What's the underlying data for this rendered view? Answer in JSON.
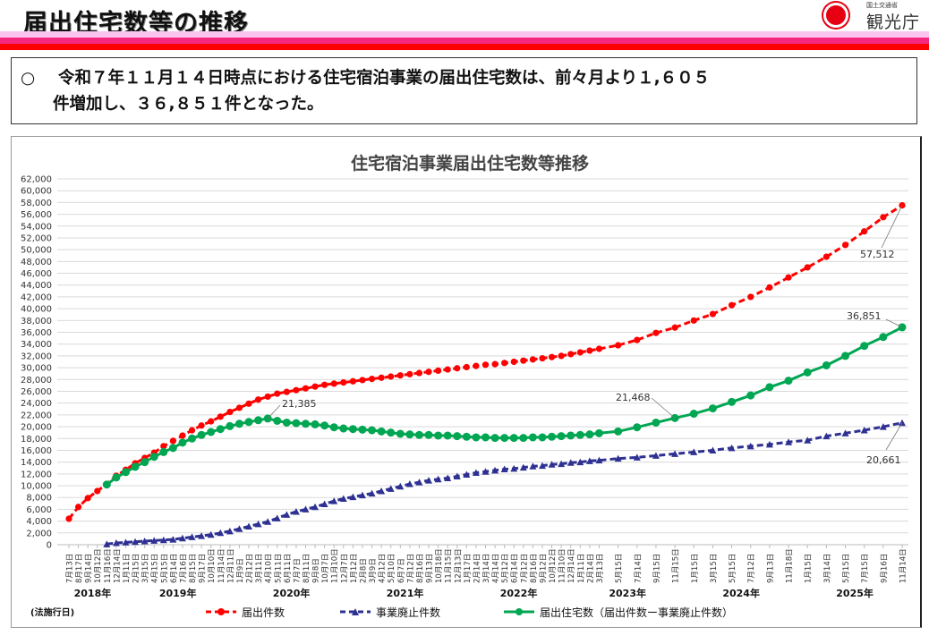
{
  "header": {
    "title": "届出住宅数等の推移",
    "logo_ministry": "国土交通省",
    "logo_agency": "観光庁"
  },
  "notice": {
    "bullet": "○",
    "line1": "令和７年１１月１４日時点における住宅宿泊事業の届出住宅数は、前々月より１,６０５",
    "line2": "件増加し、３６,８５１件となった。"
  },
  "colors": {
    "band_light": "#fbc3f0",
    "band_mid": "#f5287f",
    "band_red": "#ff0000",
    "red": "#ff0000",
    "navy": "#2e3192",
    "green": "#00a651"
  },
  "chart_data": {
    "type": "line",
    "title": "住宅宿泊事業届出住宅数等推移",
    "ylim": [
      0,
      62000
    ],
    "ystep": 2000,
    "grid": true,
    "legend_position": "bottom",
    "footnote": "(法施行日)",
    "x_labels": [
      "7月13日",
      "8月17日",
      "9月14日",
      "10月12日",
      "11月16日",
      "12月14日",
      "1月11日",
      "2月15日",
      "3月15日",
      "4月15日",
      "5月15日",
      "6月14日",
      "7月16日",
      "8月15日",
      "9月17日",
      "10月10日",
      "11月14日",
      "12月11日",
      "1月9日",
      "2月12日",
      "3月11日",
      "4月10日",
      "5月11日",
      "6月11日",
      "7月7日",
      "8月11日",
      "9月8日",
      "10月7日",
      "11月10日",
      "12月7日",
      "1月12日",
      "2月8日",
      "3月9日",
      "4月12日",
      "5月10日",
      "6月7日",
      "7月12日",
      "8月16日",
      "9月13日",
      "10月18日",
      "11月15日",
      "12月13日",
      "1月17日",
      "2月14日",
      "3月14日",
      "4月14日",
      "5月12日",
      "6月14日",
      "7月12日",
      "8月16日",
      "9月12日",
      "10月12日",
      "11月10日",
      "12月14日",
      "1月11日",
      "2月14日",
      "3月13日",
      "5月15日",
      "7月14日",
      "9月15日",
      "11月15日",
      "1月15日",
      "3月15日",
      "5月15日",
      "7月12日",
      "9月13日",
      "11月18日",
      "1月15日",
      "3月14日",
      "5月15日",
      "7月15日",
      "9月16日",
      "11月14日"
    ],
    "years": [
      {
        "label": "2018年",
        "year": 2018
      },
      {
        "label": "2019年",
        "year": 2019
      },
      {
        "label": "2020年",
        "year": 2020
      },
      {
        "label": "2021年",
        "year": 2021
      },
      {
        "label": "2022年",
        "year": 2022
      },
      {
        "label": "2023年",
        "year": 2023
      },
      {
        "label": "2024年",
        "year": 2024
      },
      {
        "label": "2025年",
        "year": 2025
      }
    ],
    "series": [
      {
        "name": "届出件数",
        "color": "#ff0000",
        "style": "dashed",
        "marker": "circle",
        "values": [
          4400,
          6400,
          7900,
          9100,
          10300,
          11700,
          12700,
          13800,
          14700,
          15600,
          16700,
          17600,
          18500,
          19400,
          20200,
          20900,
          21700,
          22500,
          23200,
          23900,
          24600,
          25100,
          25600,
          25900,
          26200,
          26500,
          26800,
          27100,
          27300,
          27500,
          27700,
          27900,
          28100,
          28300,
          28500,
          28700,
          28900,
          29100,
          29300,
          29500,
          29700,
          29900,
          30100,
          30300,
          30500,
          30600,
          30800,
          31000,
          31200,
          31400,
          31600,
          31800,
          32000,
          32300,
          32600,
          32900,
          33200,
          33800,
          34700,
          35900,
          36800,
          38000,
          39100,
          40600,
          42000,
          43600,
          45300,
          47000,
          48800,
          50800,
          53100,
          55500,
          57512
        ]
      },
      {
        "name": "事業廃止件数",
        "color": "#2e3192",
        "style": "dashed",
        "marker": "triangle",
        "values": [
          null,
          null,
          null,
          null,
          100,
          300,
          400,
          500,
          600,
          700,
          800,
          900,
          1100,
          1300,
          1500,
          1700,
          2000,
          2300,
          2700,
          3100,
          3500,
          3900,
          4500,
          5100,
          5600,
          6000,
          6400,
          6900,
          7400,
          7800,
          8100,
          8400,
          8700,
          9100,
          9500,
          9900,
          10300,
          10600,
          10900,
          11100,
          11300,
          11600,
          11900,
          12200,
          12400,
          12600,
          12800,
          12900,
          13100,
          13300,
          13400,
          13600,
          13700,
          13900,
          14000,
          14200,
          14300,
          14600,
          14800,
          15100,
          15400,
          15700,
          16000,
          16400,
          16700,
          17000,
          17400,
          17700,
          18400,
          18900,
          19400,
          20000,
          20661
        ]
      },
      {
        "name": "届出住宅数（届出件数ー事業廃止件数）",
        "color": "#00a651",
        "style": "solid",
        "marker": "circle",
        "values": [
          null,
          null,
          null,
          null,
          10200,
          11400,
          12300,
          13200,
          14000,
          14900,
          15700,
          16400,
          17300,
          18000,
          18600,
          19100,
          19600,
          20100,
          20500,
          20800,
          21100,
          21385,
          21000,
          20700,
          20600,
          20500,
          20400,
          20200,
          19900,
          19700,
          19600,
          19500,
          19400,
          19200,
          19000,
          18800,
          18700,
          18600,
          18600,
          18500,
          18500,
          18400,
          18300,
          18200,
          18200,
          18100,
          18100,
          18100,
          18100,
          18200,
          18200,
          18300,
          18400,
          18500,
          18600,
          18700,
          18900,
          19200,
          19900,
          20700,
          21468,
          22200,
          23100,
          24200,
          25300,
          26700,
          27800,
          29200,
          30400,
          32000,
          33700,
          35200,
          36851
        ]
      }
    ],
    "annotations": [
      {
        "series": 2,
        "index": 21,
        "text": "21,385"
      },
      {
        "series": 2,
        "index": 60,
        "text": "21,468"
      },
      {
        "series": 0,
        "index": 72,
        "text": "57,512"
      },
      {
        "series": 2,
        "index": 72,
        "text": "36,851"
      },
      {
        "series": 1,
        "index": 72,
        "text": "20,661"
      }
    ]
  }
}
